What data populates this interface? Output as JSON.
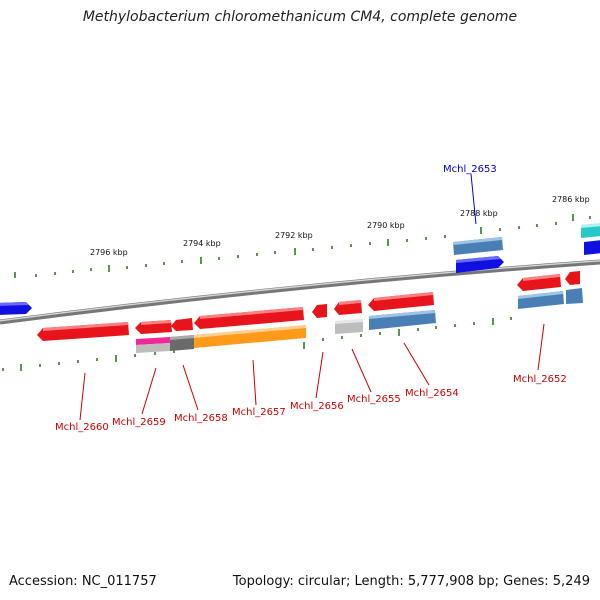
{
  "title": "Methylobacterium chloromethanicum CM4, complete genome",
  "footer": {
    "accession": "Accession: NC_011757",
    "summary": "Topology: circular; Length: 5,777,908 bp; Genes: 5,249"
  },
  "colors": {
    "backbone": "#8c8c8c",
    "tick": "#2e7d1e",
    "gene_red": "#e8141c",
    "blue": "#1010e0",
    "steel": "#4a7fb5",
    "cyan": "#28c8c8",
    "orange": "#ff9a1a",
    "pink": "#ee2a9a",
    "gray": "#bdbdbd",
    "dark_gray": "#6a6a6a",
    "label_red": "#cc0000",
    "label_blue": "#0000cc"
  },
  "scale_labels": [
    "2796 kbp",
    "2794 kbp",
    "2792 kbp",
    "2790 kbp",
    "2788 kbp",
    "2786 kbp"
  ],
  "gene_labels": [
    {
      "name": "Mchl_2660",
      "color": "red"
    },
    {
      "name": "Mchl_2659",
      "color": "red"
    },
    {
      "name": "Mchl_2658",
      "color": "red"
    },
    {
      "name": "Mchl_2657",
      "color": "red"
    },
    {
      "name": "Mchl_2656",
      "color": "red"
    },
    {
      "name": "Mchl_2655",
      "color": "red"
    },
    {
      "name": "Mchl_2654",
      "color": "red"
    },
    {
      "name": "Mchl_2652",
      "color": "red"
    },
    {
      "name": "Mchl_2653",
      "color": "blue"
    }
  ]
}
